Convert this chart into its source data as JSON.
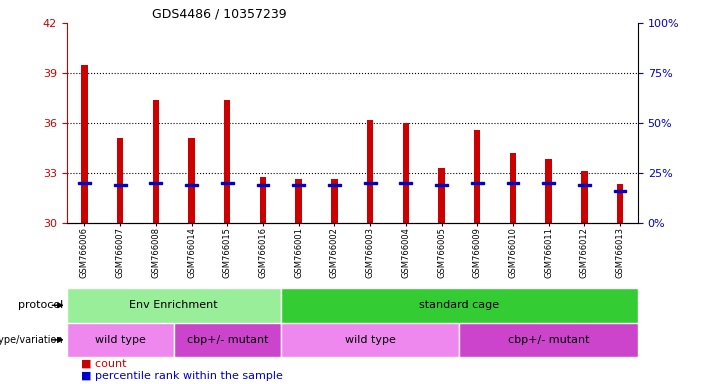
{
  "title": "GDS4486 / 10357239",
  "samples": [
    "GSM766006",
    "GSM766007",
    "GSM766008",
    "GSM766014",
    "GSM766015",
    "GSM766016",
    "GSM766001",
    "GSM766002",
    "GSM766003",
    "GSM766004",
    "GSM766005",
    "GSM766009",
    "GSM766010",
    "GSM766011",
    "GSM766012",
    "GSM766013"
  ],
  "counts": [
    39.5,
    35.1,
    37.4,
    35.1,
    37.4,
    32.75,
    32.65,
    32.65,
    36.2,
    36.0,
    33.3,
    35.6,
    34.2,
    33.85,
    33.1,
    32.3
  ],
  "percentile_values": [
    20,
    19,
    20,
    19,
    20,
    19,
    19,
    19,
    20,
    20,
    19,
    20,
    20,
    20,
    19,
    16
  ],
  "ylim_left": [
    30,
    42
  ],
  "ylim_right": [
    0,
    100
  ],
  "yticks_left": [
    30,
    33,
    36,
    39,
    42
  ],
  "yticks_right": [
    0,
    25,
    50,
    75,
    100
  ],
  "grid_lines": [
    33,
    36,
    39
  ],
  "bar_color": "#CC0000",
  "percentile_color": "#0000CC",
  "protocol_groups": [
    {
      "label": "Env Enrichment",
      "start": 0,
      "end": 6,
      "color": "#99EE99"
    },
    {
      "label": "standard cage",
      "start": 6,
      "end": 16,
      "color": "#33CC33"
    }
  ],
  "genotype_groups": [
    {
      "label": "wild type",
      "start": 0,
      "end": 3,
      "color": "#EE88EE"
    },
    {
      "label": "cbp+/- mutant",
      "start": 3,
      "end": 6,
      "color": "#CC44CC"
    },
    {
      "label": "wild type",
      "start": 6,
      "end": 11,
      "color": "#EE88EE"
    },
    {
      "label": "cbp+/- mutant",
      "start": 11,
      "end": 16,
      "color": "#CC44CC"
    }
  ],
  "left_tick_color": "#CC0000",
  "right_tick_color": "#0000CC",
  "title_color": "#000000"
}
